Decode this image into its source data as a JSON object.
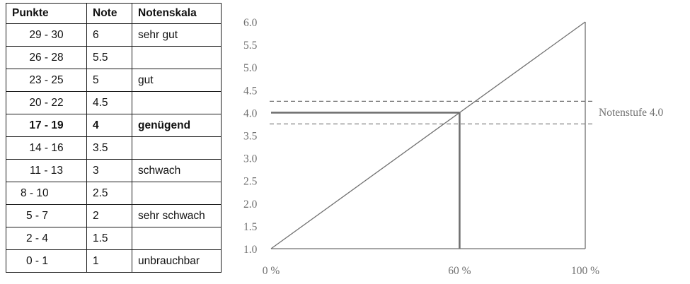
{
  "table": {
    "headers": [
      "Punkte",
      "Note",
      "Notenskala"
    ],
    "rows": [
      {
        "points": "29 - 30",
        "grade": "6",
        "label": "sehr gut"
      },
      {
        "points": "26 - 28",
        "grade": "5.5",
        "label": ""
      },
      {
        "points": "23 - 25",
        "grade": "5",
        "label": "gut"
      },
      {
        "points": "20 - 22",
        "grade": "4.5",
        "label": ""
      },
      {
        "points": "17 - 19",
        "grade": "4",
        "label": "genügend"
      },
      {
        "points": "14 - 16",
        "grade": "3.5",
        "label": ""
      },
      {
        "points": "11 - 13",
        "grade": "3",
        "label": "schwach"
      },
      {
        "points": "8 - 10",
        "grade": "2.5",
        "label": ""
      },
      {
        "points": "5 - 7",
        "grade": "2",
        "label": "sehr schwach"
      },
      {
        "points": "2 - 4",
        "grade": "1.5",
        "label": ""
      },
      {
        "points": "0 - 1",
        "grade": "1",
        "label": "unbrauchbar"
      }
    ],
    "highlight_row": 4
  },
  "chart_data": {
    "type": "line",
    "x": [
      0,
      100
    ],
    "y": [
      1.0,
      6.0
    ],
    "xlim": [
      0,
      100
    ],
    "ylim": [
      1.0,
      6.0
    ],
    "x_ticks": [
      "0 %",
      "60 %",
      "100 %"
    ],
    "x_tick_values": [
      0,
      60,
      100
    ],
    "y_ticks": [
      "6.0",
      "5.5",
      "5.0",
      "4.5",
      "4.0",
      "3.5",
      "3.0",
      "2.5",
      "2.0",
      "1.5",
      "1.0"
    ],
    "y_tick_values": [
      6.0,
      5.5,
      5.0,
      4.5,
      4.0,
      3.5,
      3.0,
      2.5,
      2.0,
      1.5,
      1.0
    ],
    "threshold": {
      "x": 60,
      "y": 4.0
    },
    "band": [
      3.75,
      4.25
    ],
    "annotation": "Notenstufe 4.0",
    "line_color": "#707070",
    "marker_color": "#707070"
  }
}
